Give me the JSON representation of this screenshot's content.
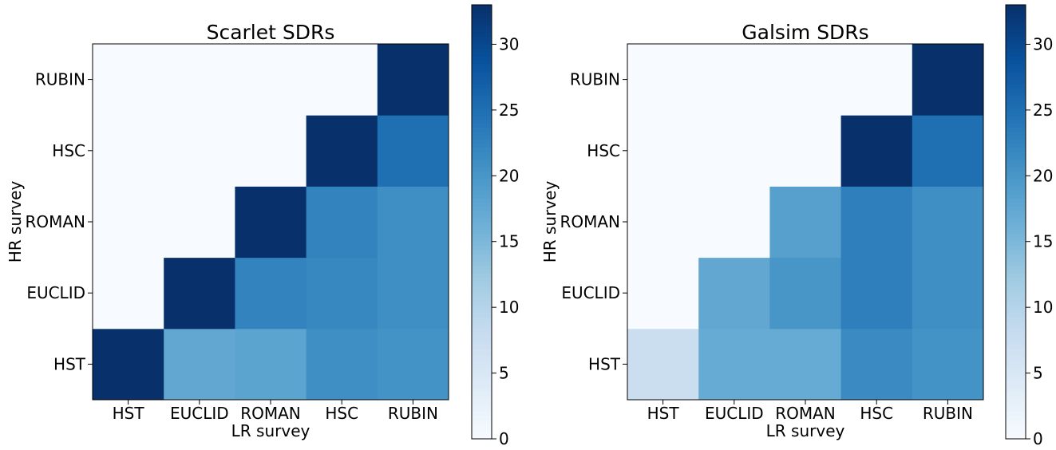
{
  "chart_data": [
    {
      "type": "heatmap",
      "title": "Scarlet SDRs",
      "xlabel": "LR survey",
      "ylabel": "HR survey",
      "x_categories": [
        "HST",
        "EUCLID",
        "ROMAN",
        "HSC",
        "RUBIN"
      ],
      "y_categories": [
        "HST",
        "EUCLID",
        "ROMAN",
        "HSC",
        "RUBIN"
      ],
      "values": [
        [
          33,
          17.5,
          18,
          21,
          20.5
        ],
        [
          0,
          33,
          22.5,
          22,
          21
        ],
        [
          0,
          0,
          33,
          22.5,
          21
        ],
        [
          0,
          0,
          0,
          33,
          25
        ],
        [
          0,
          0,
          0,
          0,
          33
        ]
      ],
      "colorbar": {
        "min": 0,
        "max": 33,
        "ticks": [
          0,
          5,
          10,
          15,
          20,
          25,
          30
        ]
      }
    },
    {
      "type": "heatmap",
      "title": "Galsim SDRs",
      "xlabel": "LR survey",
      "ylabel": "HR survey",
      "x_categories": [
        "HST",
        "EUCLID",
        "ROMAN",
        "HSC",
        "RUBIN"
      ],
      "y_categories": [
        "HST",
        "EUCLID",
        "ROMAN",
        "HSC",
        "RUBIN"
      ],
      "values": [
        [
          7.5,
          17,
          17,
          21.5,
          20.5
        ],
        [
          0,
          17.5,
          20,
          23,
          21
        ],
        [
          0,
          0,
          18.5,
          23,
          21
        ],
        [
          0,
          0,
          0,
          33,
          25
        ],
        [
          0,
          0,
          0,
          0,
          33
        ]
      ],
      "colorbar": {
        "min": 0,
        "max": 33,
        "ticks": [
          0,
          5,
          10,
          15,
          20,
          25,
          30
        ]
      }
    }
  ]
}
